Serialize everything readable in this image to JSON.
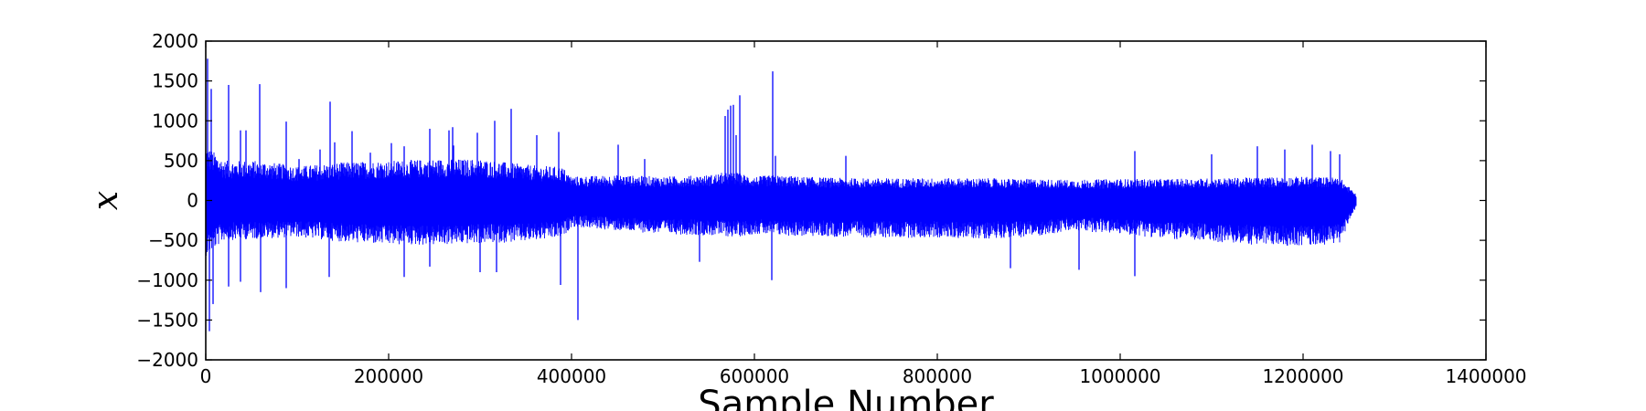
{
  "chart_data": {
    "type": "line",
    "title": "",
    "xlabel": "Sample Number",
    "ylabel": "x",
    "xlim": [
      0,
      1400000
    ],
    "ylim": [
      -2000,
      2000
    ],
    "x_ticks": [
      0,
      200000,
      400000,
      600000,
      800000,
      1000000,
      1200000,
      1400000
    ],
    "x_tick_labels": [
      "0",
      "200000",
      "400000",
      "600000",
      "800000",
      "1000000",
      "1200000",
      "1400000"
    ],
    "y_ticks": [
      2000,
      1500,
      1000,
      500,
      0,
      -500,
      -1000,
      -1500,
      -2000
    ],
    "y_tick_labels": [
      "2000",
      "1500",
      "1000",
      "500",
      "0",
      "−500",
      "−1000",
      "−1500",
      "−2000"
    ],
    "grid": false,
    "legend": "none",
    "series": [
      {
        "color": "#0000ff",
        "x_range": [
          0,
          1258000
        ],
        "envelope": {
          "x": [
            0,
            20000,
            60000,
            100000,
            150000,
            200000,
            250000,
            300000,
            350000,
            390000,
            400000,
            450000,
            500000,
            550000,
            565000,
            580000,
            600000,
            620000,
            650000,
            700000,
            750000,
            800000,
            850000,
            900000,
            950000,
            1000000,
            1050000,
            1100000,
            1150000,
            1200000,
            1240000,
            1258000
          ],
          "upper": [
            700,
            500,
            500,
            430,
            480,
            500,
            520,
            520,
            450,
            420,
            300,
            320,
            300,
            320,
            350,
            350,
            300,
            320,
            300,
            280,
            280,
            280,
            280,
            270,
            260,
            270,
            270,
            280,
            290,
            300,
            290,
            80
          ],
          "lower": [
            -700,
            -500,
            -480,
            -460,
            -520,
            -560,
            -560,
            -540,
            -520,
            -470,
            -330,
            -380,
            -420,
            -440,
            -450,
            -460,
            -420,
            -440,
            -450,
            -460,
            -470,
            -470,
            -480,
            -460,
            -380,
            -420,
            -480,
            -520,
            -560,
            -570,
            -540,
            -80
          ]
        },
        "spikes": [
          {
            "x": 2000,
            "y": 1780
          },
          {
            "x": 4000,
            "y": -1640
          },
          {
            "x": 6000,
            "y": 1400
          },
          {
            "x": 8000,
            "y": -1300
          },
          {
            "x": 25000,
            "y": 1450
          },
          {
            "x": 25000,
            "y": -1080
          },
          {
            "x": 38000,
            "y": 880
          },
          {
            "x": 38000,
            "y": -1020
          },
          {
            "x": 44000,
            "y": 880
          },
          {
            "x": 59000,
            "y": 1460
          },
          {
            "x": 60000,
            "y": -1150
          },
          {
            "x": 88000,
            "y": 990
          },
          {
            "x": 88000,
            "y": -1100
          },
          {
            "x": 102000,
            "y": 520
          },
          {
            "x": 125000,
            "y": 640
          },
          {
            "x": 136000,
            "y": 1240
          },
          {
            "x": 135000,
            "y": -960
          },
          {
            "x": 141000,
            "y": 730
          },
          {
            "x": 160000,
            "y": 870
          },
          {
            "x": 180000,
            "y": 600
          },
          {
            "x": 203000,
            "y": 720
          },
          {
            "x": 217000,
            "y": 680
          },
          {
            "x": 217000,
            "y": -960
          },
          {
            "x": 245000,
            "y": 900
          },
          {
            "x": 245000,
            "y": -830
          },
          {
            "x": 266000,
            "y": 880
          },
          {
            "x": 270000,
            "y": 920
          },
          {
            "x": 271000,
            "y": 690
          },
          {
            "x": 297000,
            "y": 850
          },
          {
            "x": 300000,
            "y": -900
          },
          {
            "x": 316000,
            "y": 1000
          },
          {
            "x": 318000,
            "y": -900
          },
          {
            "x": 334000,
            "y": 1150
          },
          {
            "x": 362000,
            "y": 820
          },
          {
            "x": 386000,
            "y": 860
          },
          {
            "x": 388000,
            "y": -1060
          },
          {
            "x": 407000,
            "y": -1500
          },
          {
            "x": 451000,
            "y": 700
          },
          {
            "x": 480000,
            "y": 520
          },
          {
            "x": 540000,
            "y": -770
          },
          {
            "x": 568000,
            "y": 1060
          },
          {
            "x": 571000,
            "y": 1140
          },
          {
            "x": 574000,
            "y": 1190
          },
          {
            "x": 577000,
            "y": 1200
          },
          {
            "x": 580000,
            "y": 820
          },
          {
            "x": 584000,
            "y": 1320
          },
          {
            "x": 620000,
            "y": 1620
          },
          {
            "x": 619000,
            "y": -1000
          },
          {
            "x": 623000,
            "y": 560
          },
          {
            "x": 700000,
            "y": 560
          },
          {
            "x": 880000,
            "y": -850
          },
          {
            "x": 955000,
            "y": -870
          },
          {
            "x": 1016000,
            "y": 620
          },
          {
            "x": 1016000,
            "y": -950
          },
          {
            "x": 1100000,
            "y": 580
          },
          {
            "x": 1150000,
            "y": 680
          },
          {
            "x": 1180000,
            "y": 640
          },
          {
            "x": 1210000,
            "y": 700
          },
          {
            "x": 1230000,
            "y": 620
          },
          {
            "x": 1240000,
            "y": 580
          }
        ]
      }
    ]
  }
}
